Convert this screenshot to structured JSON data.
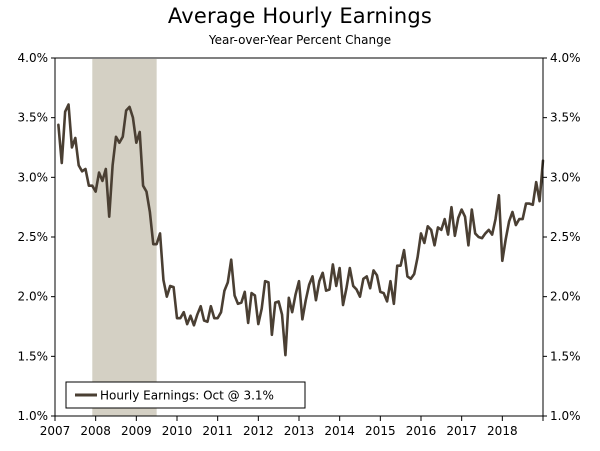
{
  "chart_data": {
    "type": "line",
    "title": "Average Hourly Earnings",
    "subtitle": "Year-over-Year Percent Change",
    "xlabel": "",
    "ylabel": "",
    "xlim": [
      2007,
      2019
    ],
    "ylim": [
      1.0,
      4.0
    ],
    "x_ticks": [
      "2007",
      "2008",
      "2009",
      "2010",
      "2011",
      "2012",
      "2013",
      "2014",
      "2015",
      "2016",
      "2017",
      "2018"
    ],
    "y_ticks": [
      "1.0%",
      "1.5%",
      "2.0%",
      "2.5%",
      "3.0%",
      "3.5%",
      "4.0%"
    ],
    "recession": [
      2007.917,
      2009.5
    ],
    "legend": "Hourly Earnings: Oct @ 3.1%",
    "legend_position": "bottom-left",
    "colors": {
      "line": "#4a3f33",
      "recession": "#d4d0c4",
      "axis": "#000000"
    },
    "series": [
      {
        "name": "Hourly Earnings",
        "start": 2007.083,
        "step": 0.08333,
        "values": [
          3.44,
          3.12,
          3.55,
          3.61,
          3.25,
          3.33,
          3.1,
          3.05,
          3.07,
          2.93,
          2.93,
          2.88,
          3.04,
          2.97,
          3.07,
          2.67,
          3.1,
          3.34,
          3.29,
          3.34,
          3.56,
          3.59,
          3.5,
          3.29,
          3.38,
          2.93,
          2.88,
          2.71,
          2.44,
          2.44,
          2.53,
          2.14,
          2.0,
          2.09,
          2.08,
          1.82,
          1.82,
          1.87,
          1.77,
          1.84,
          1.76,
          1.85,
          1.92,
          1.8,
          1.79,
          1.92,
          1.82,
          1.82,
          1.87,
          2.05,
          2.12,
          2.31,
          2.01,
          1.94,
          1.95,
          2.04,
          1.78,
          2.03,
          2.01,
          1.77,
          1.9,
          2.13,
          2.12,
          1.68,
          1.95,
          1.96,
          1.85,
          1.51,
          1.99,
          1.87,
          2.02,
          2.13,
          1.81,
          1.97,
          2.1,
          2.17,
          1.97,
          2.13,
          2.2,
          2.05,
          2.06,
          2.27,
          2.09,
          2.24,
          1.93,
          2.07,
          2.24,
          2.09,
          2.06,
          2.0,
          2.15,
          2.17,
          2.07,
          2.22,
          2.18,
          2.04,
          2.03,
          1.96,
          2.13,
          1.94,
          2.26,
          2.26,
          2.39,
          2.17,
          2.15,
          2.19,
          2.33,
          2.53,
          2.45,
          2.59,
          2.56,
          2.43,
          2.58,
          2.56,
          2.65,
          2.52,
          2.75,
          2.51,
          2.66,
          2.73,
          2.67,
          2.43,
          2.73,
          2.53,
          2.5,
          2.49,
          2.53,
          2.56,
          2.52,
          2.65,
          2.85,
          2.3,
          2.48,
          2.63,
          2.71,
          2.6,
          2.65,
          2.65,
          2.78,
          2.78,
          2.77,
          2.96,
          2.8,
          3.14
        ]
      }
    ]
  }
}
